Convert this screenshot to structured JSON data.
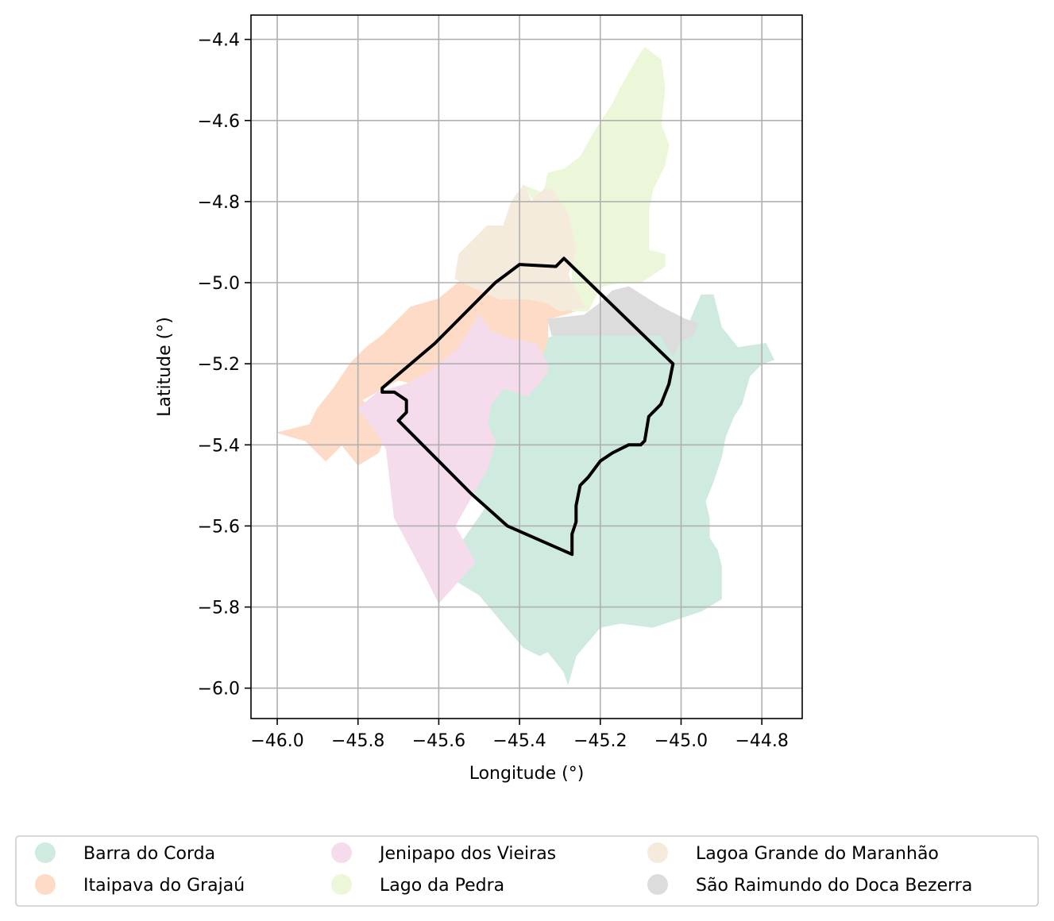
{
  "axes": {
    "xlabel": "Longitude (°)",
    "ylabel": "Latitude (°)",
    "xlim": [
      -46.065,
      -44.7
    ],
    "ylim": [
      -6.075,
      -4.34
    ],
    "xticks": [
      -46.0,
      -45.8,
      -45.6,
      -45.4,
      -45.2,
      -45.0,
      -44.8
    ],
    "xtick_labels": [
      "−46.0",
      "−45.8",
      "−45.6",
      "−45.4",
      "−45.2",
      "−45.0",
      "−44.8"
    ],
    "yticks": [
      -4.4,
      -4.6,
      -4.8,
      -5.0,
      -5.2,
      -5.4,
      -5.6,
      -5.8,
      -6.0
    ],
    "ytick_labels": [
      "−4.4",
      "−4.6",
      "−4.8",
      "−5.0",
      "−5.2",
      "−5.4",
      "−5.6",
      "−5.8",
      "−6.0"
    ],
    "grid": true
  },
  "regions": [
    {
      "name": "Barra do Corda",
      "color": "#cfeadf",
      "lonlat": [
        [
          -45.24,
          -5.12
        ],
        [
          -45.02,
          -5.12
        ],
        [
          -44.98,
          -5.1
        ],
        [
          -44.95,
          -5.03
        ],
        [
          -44.92,
          -5.03
        ],
        [
          -44.9,
          -5.11
        ],
        [
          -44.86,
          -5.16
        ],
        [
          -44.79,
          -5.15
        ],
        [
          -44.77,
          -5.19
        ],
        [
          -44.8,
          -5.2
        ],
        [
          -44.83,
          -5.23
        ],
        [
          -44.85,
          -5.3
        ],
        [
          -44.87,
          -5.33
        ],
        [
          -44.89,
          -5.38
        ],
        [
          -44.9,
          -5.43
        ],
        [
          -44.92,
          -5.49
        ],
        [
          -44.94,
          -5.54
        ],
        [
          -44.93,
          -5.58
        ],
        [
          -44.93,
          -5.63
        ],
        [
          -44.91,
          -5.66
        ],
        [
          -44.9,
          -5.7
        ],
        [
          -44.9,
          -5.78
        ],
        [
          -44.95,
          -5.81
        ],
        [
          -45.07,
          -5.85
        ],
        [
          -45.15,
          -5.84
        ],
        [
          -45.2,
          -5.85
        ],
        [
          -45.26,
          -5.92
        ],
        [
          -45.28,
          -5.99
        ],
        [
          -45.29,
          -5.96
        ],
        [
          -45.33,
          -5.91
        ],
        [
          -45.35,
          -5.92
        ],
        [
          -45.39,
          -5.9
        ],
        [
          -45.5,
          -5.77
        ],
        [
          -45.6,
          -5.71
        ],
        [
          -45.55,
          -5.65
        ],
        [
          -45.48,
          -5.55
        ],
        [
          -45.55,
          -5.48
        ],
        [
          -45.55,
          -5.4
        ],
        [
          -45.6,
          -5.3
        ],
        [
          -45.58,
          -5.26
        ],
        [
          -45.53,
          -5.27
        ],
        [
          -45.45,
          -5.25
        ],
        [
          -45.35,
          -5.2
        ],
        [
          -45.34,
          -5.14
        ],
        [
          -45.28,
          -5.12
        ]
      ]
    },
    {
      "name": "Itaipava do Grajaú",
      "color": "#fddbc6",
      "lonlat": [
        [
          -46.0,
          -5.37
        ],
        [
          -45.92,
          -5.35
        ],
        [
          -45.9,
          -5.31
        ],
        [
          -45.86,
          -5.26
        ],
        [
          -45.82,
          -5.2
        ],
        [
          -45.78,
          -5.16
        ],
        [
          -45.74,
          -5.13
        ],
        [
          -45.69,
          -5.08
        ],
        [
          -45.67,
          -5.06
        ],
        [
          -45.6,
          -5.04
        ],
        [
          -45.54,
          -4.99
        ],
        [
          -45.49,
          -5.0
        ],
        [
          -45.4,
          -5.02
        ],
        [
          -45.3,
          -5.05
        ],
        [
          -45.26,
          -5.07
        ],
        [
          -45.33,
          -5.09
        ],
        [
          -45.33,
          -5.14
        ],
        [
          -45.35,
          -5.2
        ],
        [
          -45.35,
          -5.25
        ],
        [
          -45.42,
          -5.26
        ],
        [
          -45.55,
          -5.21
        ],
        [
          -45.62,
          -5.26
        ],
        [
          -45.7,
          -5.24
        ],
        [
          -45.79,
          -5.29
        ],
        [
          -45.72,
          -5.35
        ],
        [
          -45.75,
          -5.42
        ],
        [
          -45.8,
          -5.45
        ],
        [
          -45.84,
          -5.4
        ],
        [
          -45.88,
          -5.44
        ],
        [
          -45.93,
          -5.39
        ]
      ]
    },
    {
      "name": "Jenipapo dos Vieiras",
      "color": "#f5dced",
      "lonlat": [
        [
          -45.8,
          -5.31
        ],
        [
          -45.75,
          -5.27
        ],
        [
          -45.68,
          -5.25
        ],
        [
          -45.62,
          -5.22
        ],
        [
          -45.55,
          -5.16
        ],
        [
          -45.5,
          -5.08
        ],
        [
          -45.47,
          -5.12
        ],
        [
          -45.42,
          -5.14
        ],
        [
          -45.36,
          -5.15
        ],
        [
          -45.33,
          -5.2
        ],
        [
          -45.33,
          -5.22
        ],
        [
          -45.38,
          -5.28
        ],
        [
          -45.44,
          -5.26
        ],
        [
          -45.47,
          -5.3
        ],
        [
          -45.48,
          -5.35
        ],
        [
          -45.46,
          -5.39
        ],
        [
          -45.48,
          -5.46
        ],
        [
          -45.56,
          -5.6
        ],
        [
          -45.51,
          -5.69
        ],
        [
          -45.6,
          -5.79
        ],
        [
          -45.63,
          -5.73
        ],
        [
          -45.71,
          -5.58
        ],
        [
          -45.73,
          -5.41
        ],
        [
          -45.76,
          -5.36
        ]
      ]
    },
    {
      "name": "Lago da Pedra",
      "color": "#ecf7d9",
      "lonlat": [
        [
          -45.34,
          -4.78
        ],
        [
          -45.33,
          -4.73
        ],
        [
          -45.29,
          -4.72
        ],
        [
          -45.25,
          -4.69
        ],
        [
          -45.21,
          -4.62
        ],
        [
          -45.17,
          -4.56
        ],
        [
          -45.15,
          -4.52
        ],
        [
          -45.11,
          -4.45
        ],
        [
          -45.09,
          -4.42
        ],
        [
          -45.05,
          -4.45
        ],
        [
          -45.04,
          -4.52
        ],
        [
          -45.05,
          -4.61
        ],
        [
          -45.03,
          -4.66
        ],
        [
          -45.04,
          -4.71
        ],
        [
          -45.07,
          -4.77
        ],
        [
          -45.08,
          -4.82
        ],
        [
          -45.08,
          -4.92
        ],
        [
          -45.04,
          -4.93
        ],
        [
          -45.04,
          -4.96
        ],
        [
          -45.07,
          -4.98
        ],
        [
          -45.1,
          -5.0
        ],
        [
          -45.15,
          -5.0
        ],
        [
          -45.2,
          -5.01
        ],
        [
          -45.23,
          -5.07
        ],
        [
          -45.27,
          -5.07
        ],
        [
          -45.27,
          -4.94
        ],
        [
          -45.28,
          -4.86
        ],
        [
          -45.32,
          -4.83
        ],
        [
          -45.35,
          -4.82
        ],
        [
          -45.39,
          -4.76
        ]
      ]
    },
    {
      "name": "Lagoa Grande do Maranhão",
      "color": "#f4ebdd",
      "lonlat": [
        [
          -45.56,
          -4.99
        ],
        [
          -45.52,
          -5.01
        ],
        [
          -45.45,
          -5.04
        ],
        [
          -45.38,
          -5.04
        ],
        [
          -45.33,
          -5.05
        ],
        [
          -45.3,
          -5.07
        ],
        [
          -45.24,
          -5.06
        ],
        [
          -45.28,
          -4.98
        ],
        [
          -45.26,
          -4.92
        ],
        [
          -45.28,
          -4.83
        ],
        [
          -45.32,
          -4.77
        ],
        [
          -45.34,
          -4.77
        ],
        [
          -45.37,
          -4.8
        ],
        [
          -45.39,
          -4.76
        ],
        [
          -45.42,
          -4.8
        ],
        [
          -45.44,
          -4.86
        ],
        [
          -45.48,
          -4.86
        ],
        [
          -45.52,
          -4.9
        ],
        [
          -45.55,
          -4.93
        ]
      ]
    },
    {
      "name": "São Raimundo do Doca Bezerra",
      "color": "#dcdcdc",
      "lonlat": [
        [
          -45.33,
          -5.09
        ],
        [
          -45.24,
          -5.08
        ],
        [
          -45.2,
          -5.05
        ],
        [
          -45.17,
          -5.02
        ],
        [
          -45.13,
          -5.01
        ],
        [
          -45.05,
          -5.06
        ],
        [
          -44.99,
          -5.09
        ],
        [
          -44.96,
          -5.1
        ],
        [
          -44.97,
          -5.13
        ],
        [
          -45.0,
          -5.14
        ],
        [
          -45.02,
          -5.18
        ],
        [
          -45.05,
          -5.13
        ],
        [
          -45.24,
          -5.13
        ],
        [
          -45.32,
          -5.13
        ]
      ]
    }
  ],
  "outline": {
    "color": "#000000",
    "lonlat": [
      [
        -45.74,
        -5.26
      ],
      [
        -45.61,
        -5.15
      ],
      [
        -45.55,
        -5.09
      ],
      [
        -45.46,
        -5.0
      ],
      [
        -45.4,
        -4.955
      ],
      [
        -45.31,
        -4.96
      ],
      [
        -45.29,
        -4.94
      ],
      [
        -45.02,
        -5.2
      ],
      [
        -45.03,
        -5.25
      ],
      [
        -45.05,
        -5.3
      ],
      [
        -45.08,
        -5.33
      ],
      [
        -45.09,
        -5.39
      ],
      [
        -45.1,
        -5.4
      ],
      [
        -45.13,
        -5.4
      ],
      [
        -45.17,
        -5.42
      ],
      [
        -45.2,
        -5.44
      ],
      [
        -45.23,
        -5.48
      ],
      [
        -45.25,
        -5.5
      ],
      [
        -45.26,
        -5.55
      ],
      [
        -45.26,
        -5.59
      ],
      [
        -45.27,
        -5.62
      ],
      [
        -45.27,
        -5.67
      ],
      [
        -45.43,
        -5.6
      ],
      [
        -45.52,
        -5.52
      ],
      [
        -45.6,
        -5.44
      ],
      [
        -45.7,
        -5.34
      ],
      [
        -45.68,
        -5.32
      ],
      [
        -45.68,
        -5.29
      ],
      [
        -45.71,
        -5.27
      ],
      [
        -45.74,
        -5.27
      ]
    ]
  },
  "legend": {
    "entries": [
      {
        "label": "Barra do Corda",
        "color": "#cfeadf"
      },
      {
        "label": "Jenipapo dos Vieiras",
        "color": "#f5dced"
      },
      {
        "label": "Lagoa Grande do Maranhão",
        "color": "#f4ebdd"
      },
      {
        "label": "Itaipava do Grajaú",
        "color": "#fddbc6"
      },
      {
        "label": "Lago da Pedra",
        "color": "#ecf7d9"
      },
      {
        "label": "São Raimundo do Doca Bezerra",
        "color": "#dcdcdc"
      }
    ],
    "placement": "bottom-center"
  }
}
